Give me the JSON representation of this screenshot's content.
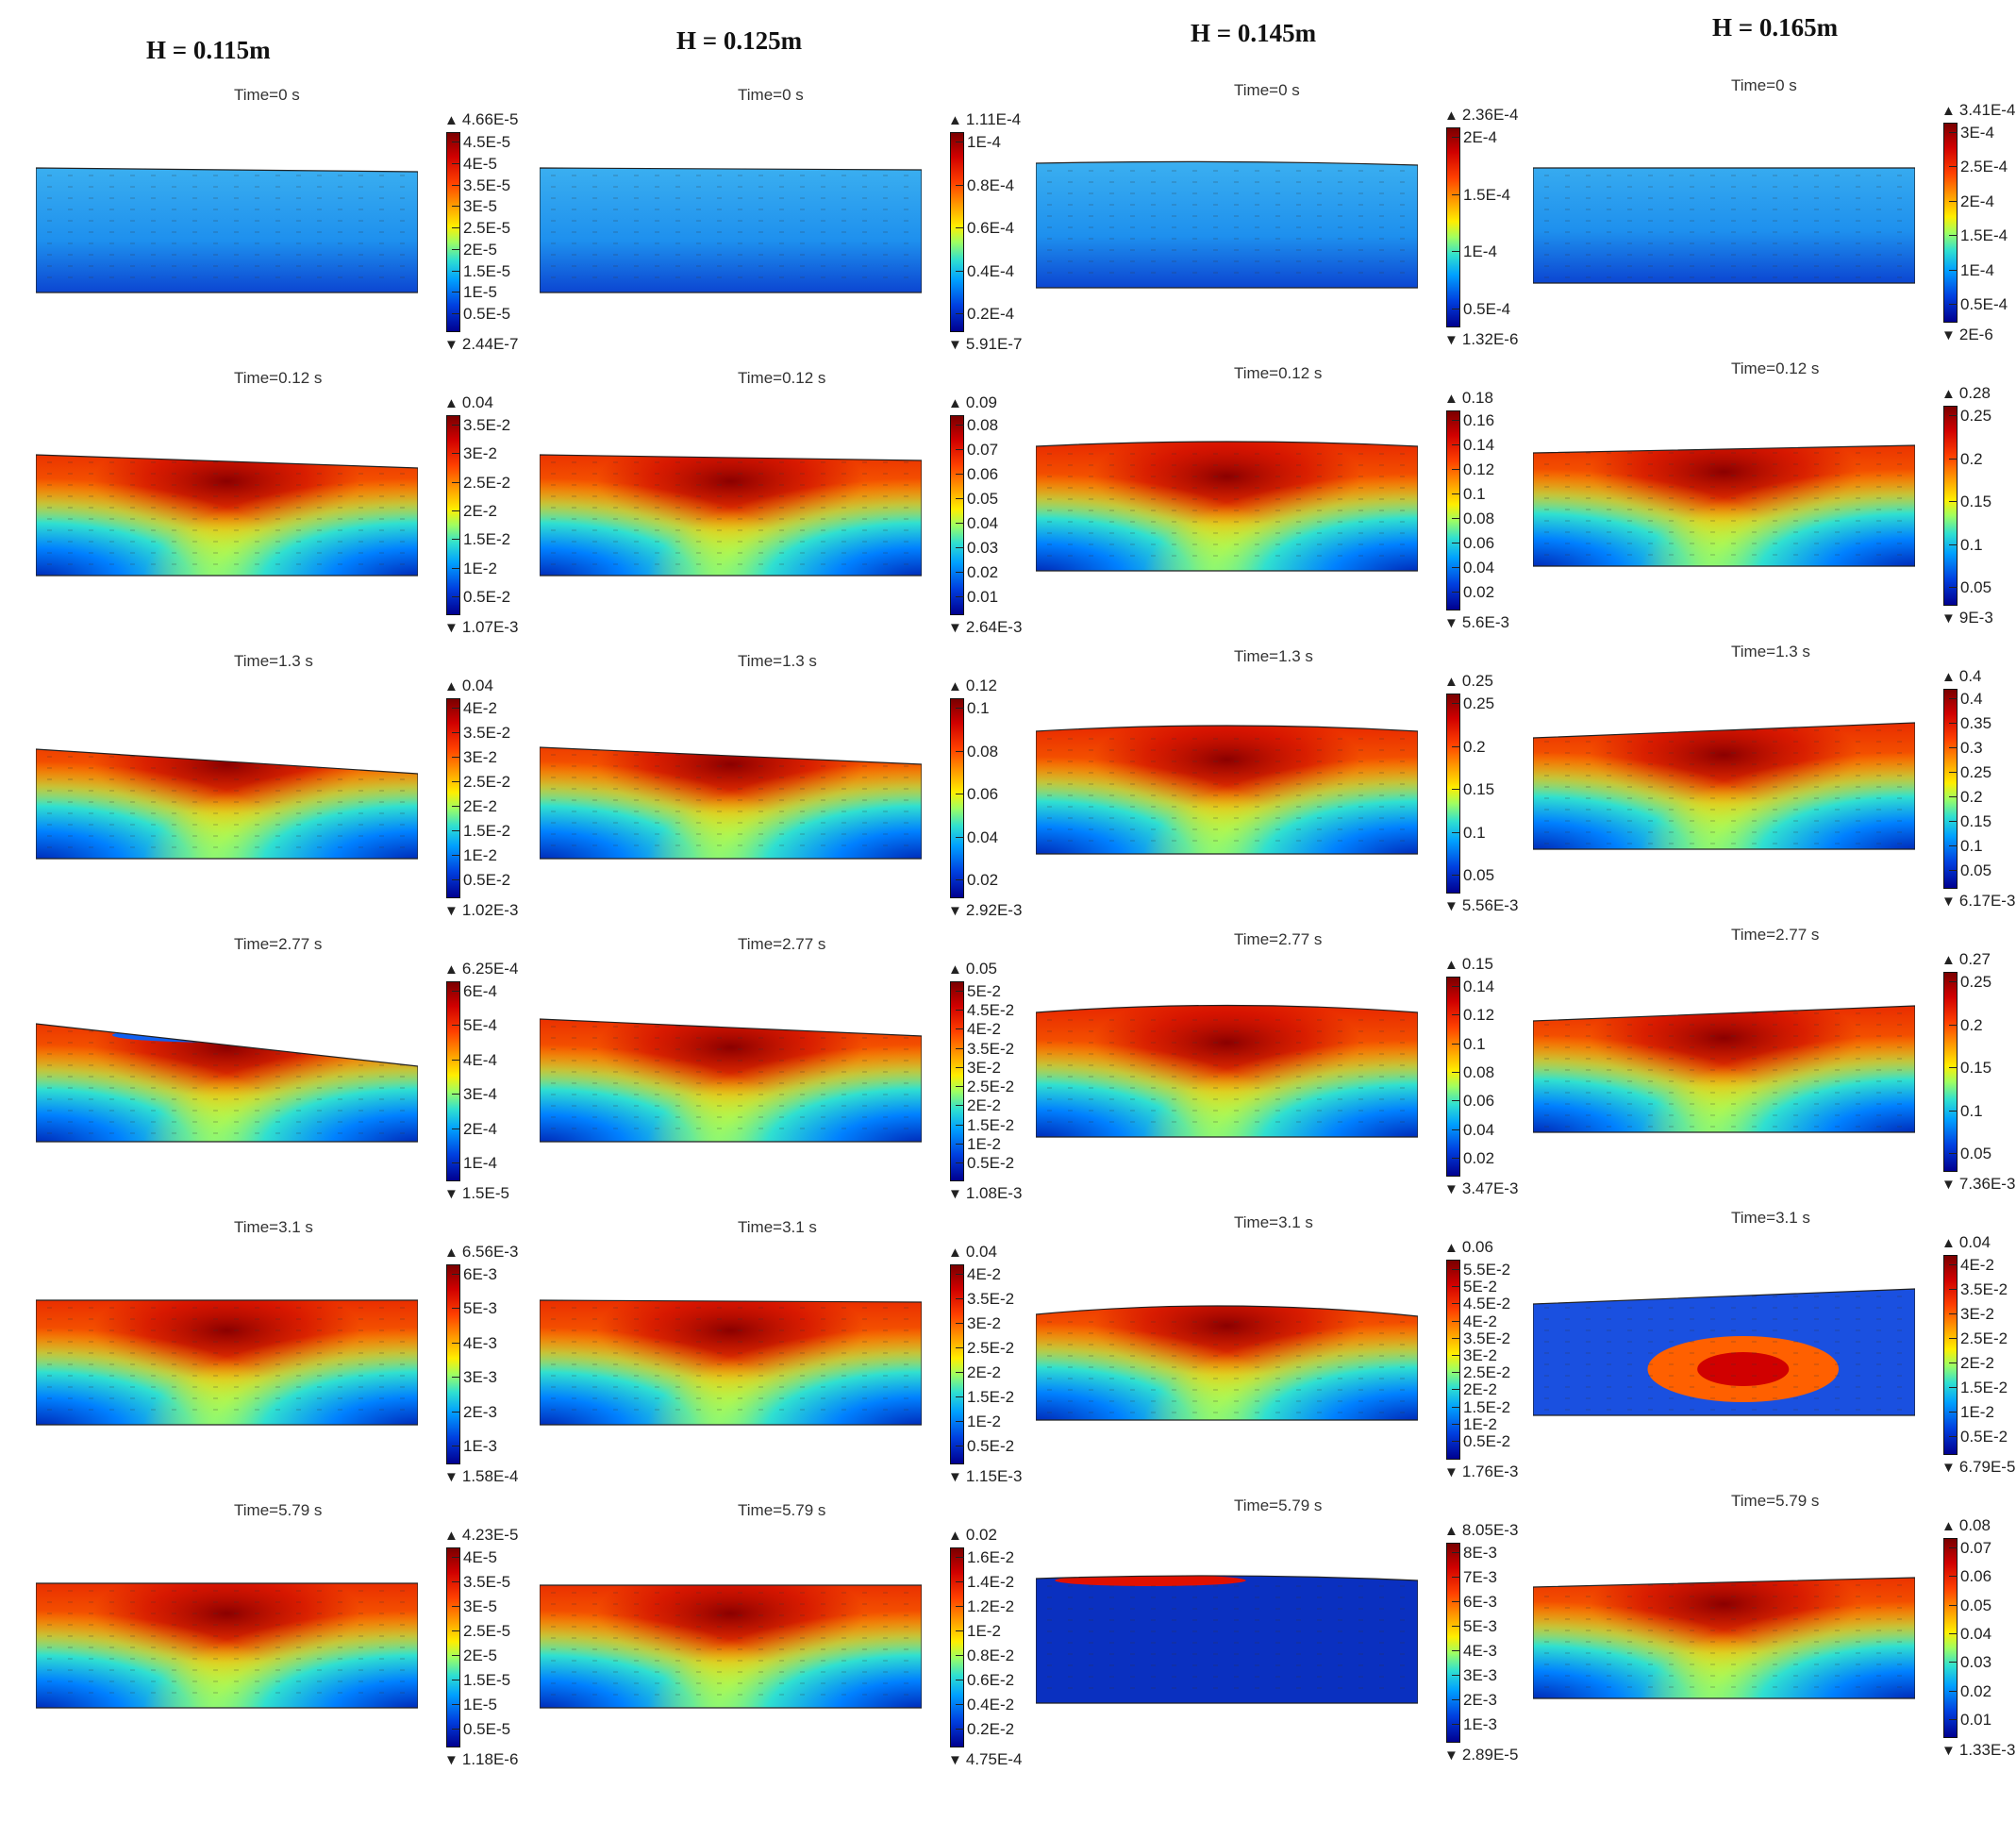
{
  "columns": [
    {
      "header": "H = 0.115m",
      "panels": [
        {
          "time": "Time=0 s",
          "max": "4.66E-5",
          "min": "2.44E-7",
          "ticks": [
            "4.5E-5",
            "4E-5",
            "3.5E-5",
            "3E-5",
            "2.5E-5",
            "2E-5",
            "1.5E-5",
            "1E-5",
            "0.5E-5"
          ]
        },
        {
          "time": "Time=0.12 s",
          "max": "0.04",
          "min": "1.07E-3",
          "ticks": [
            "3.5E-2",
            "3E-2",
            "2.5E-2",
            "2E-2",
            "1.5E-2",
            "1E-2",
            "0.5E-2"
          ]
        },
        {
          "time": "Time=1.3 s",
          "max": "0.04",
          "min": "1.02E-3",
          "ticks": [
            "4E-2",
            "3.5E-2",
            "3E-2",
            "2.5E-2",
            "2E-2",
            "1.5E-2",
            "1E-2",
            "0.5E-2"
          ]
        },
        {
          "time": "Time=2.77 s",
          "max": "6.25E-4",
          "min": "1.5E-5",
          "ticks": [
            "6E-4",
            "5E-4",
            "4E-4",
            "3E-4",
            "2E-4",
            "1E-4"
          ]
        },
        {
          "time": "Time=3.1 s",
          "max": "6.56E-3",
          "min": "1.58E-4",
          "ticks": [
            "6E-3",
            "5E-3",
            "4E-3",
            "3E-3",
            "2E-3",
            "1E-3"
          ]
        },
        {
          "time": "Time=5.79 s",
          "max": "4.23E-5",
          "min": "1.18E-6",
          "ticks": [
            "4E-5",
            "3.5E-5",
            "3E-5",
            "2.5E-5",
            "2E-5",
            "1.5E-5",
            "1E-5",
            "0.5E-5"
          ]
        }
      ]
    },
    {
      "header": "H = 0.125m",
      "panels": [
        {
          "time": "Time=0 s",
          "max": "1.11E-4",
          "min": "5.91E-7",
          "ticks": [
            "1E-4",
            "0.8E-4",
            "0.6E-4",
            "0.4E-4",
            "0.2E-4"
          ]
        },
        {
          "time": "Time=0.12 s",
          "max": "0.09",
          "min": "2.64E-3",
          "ticks": [
            "0.08",
            "0.07",
            "0.06",
            "0.05",
            "0.04",
            "0.03",
            "0.02",
            "0.01"
          ]
        },
        {
          "time": "Time=1.3 s",
          "max": "0.12",
          "min": "2.92E-3",
          "ticks": [
            "0.1",
            "0.08",
            "0.06",
            "0.04",
            "0.02"
          ]
        },
        {
          "time": "Time=2.77 s",
          "max": "0.05",
          "min": "1.08E-3",
          "ticks": [
            "5E-2",
            "4.5E-2",
            "4E-2",
            "3.5E-2",
            "3E-2",
            "2.5E-2",
            "2E-2",
            "1.5E-2",
            "1E-2",
            "0.5E-2"
          ]
        },
        {
          "time": "Time=3.1 s",
          "max": "0.04",
          "min": "1.15E-3",
          "ticks": [
            "4E-2",
            "3.5E-2",
            "3E-2",
            "2.5E-2",
            "2E-2",
            "1.5E-2",
            "1E-2",
            "0.5E-2"
          ]
        },
        {
          "time": "Time=5.79 s",
          "max": "0.02",
          "min": "4.75E-4",
          "ticks": [
            "1.6E-2",
            "1.4E-2",
            "1.2E-2",
            "1E-2",
            "0.8E-2",
            "0.6E-2",
            "0.4E-2",
            "0.2E-2"
          ]
        }
      ]
    },
    {
      "header": "H = 0.145m",
      "panels": [
        {
          "time": "Time=0 s",
          "max": "2.36E-4",
          "min": "1.32E-6",
          "ticks": [
            "2E-4",
            "1.5E-4",
            "1E-4",
            "0.5E-4"
          ]
        },
        {
          "time": "Time=0.12 s",
          "max": "0.18",
          "min": "5.6E-3",
          "ticks": [
            "0.16",
            "0.14",
            "0.12",
            "0.1",
            "0.08",
            "0.06",
            "0.04",
            "0.02"
          ]
        },
        {
          "time": "Time=1.3 s",
          "max": "0.25",
          "min": "5.56E-3",
          "ticks": [
            "0.25",
            "0.2",
            "0.15",
            "0.1",
            "0.05"
          ]
        },
        {
          "time": "Time=2.77 s",
          "max": "0.15",
          "min": "3.47E-3",
          "ticks": [
            "0.14",
            "0.12",
            "0.1",
            "0.08",
            "0.06",
            "0.04",
            "0.02"
          ]
        },
        {
          "time": "Time=3.1 s",
          "max": "0.06",
          "min": "1.76E-3",
          "ticks": [
            "5.5E-2",
            "5E-2",
            "4.5E-2",
            "4E-2",
            "3.5E-2",
            "3E-2",
            "2.5E-2",
            "2E-2",
            "1.5E-2",
            "1E-2",
            "0.5E-2"
          ]
        },
        {
          "time": "Time=5.79 s",
          "max": "8.05E-3",
          "min": "2.89E-5",
          "ticks": [
            "8E-3",
            "7E-3",
            "6E-3",
            "5E-3",
            "4E-3",
            "3E-3",
            "2E-3",
            "1E-3"
          ]
        }
      ]
    },
    {
      "header": "H = 0.165m",
      "panels": [
        {
          "time": "Time=0 s",
          "max": "3.41E-4",
          "min": "2E-6",
          "ticks": [
            "3E-4",
            "2.5E-4",
            "2E-4",
            "1.5E-4",
            "1E-4",
            "0.5E-4"
          ]
        },
        {
          "time": "Time=0.12 s",
          "max": "0.28",
          "min": "9E-3",
          "ticks": [
            "0.25",
            "0.2",
            "0.15",
            "0.1",
            "0.05"
          ]
        },
        {
          "time": "Time=1.3 s",
          "max": "0.4",
          "min": "6.17E-3",
          "ticks": [
            "0.4",
            "0.35",
            "0.3",
            "0.25",
            "0.2",
            "0.15",
            "0.1",
            "0.05"
          ]
        },
        {
          "time": "Time=2.77 s",
          "max": "0.27",
          "min": "7.36E-3",
          "ticks": [
            "0.25",
            "0.2",
            "0.15",
            "0.1",
            "0.05"
          ]
        },
        {
          "time": "Time=3.1 s",
          "max": "0.04",
          "min": "6.79E-5",
          "ticks": [
            "4E-2",
            "3.5E-2",
            "3E-2",
            "2.5E-2",
            "2E-2",
            "1.5E-2",
            "1E-2",
            "0.5E-2"
          ]
        },
        {
          "time": "Time=5.79 s",
          "max": "0.08",
          "min": "1.33E-3",
          "ticks": [
            "0.07",
            "0.06",
            "0.05",
            "0.04",
            "0.03",
            "0.02",
            "0.01"
          ]
        }
      ]
    }
  ]
}
